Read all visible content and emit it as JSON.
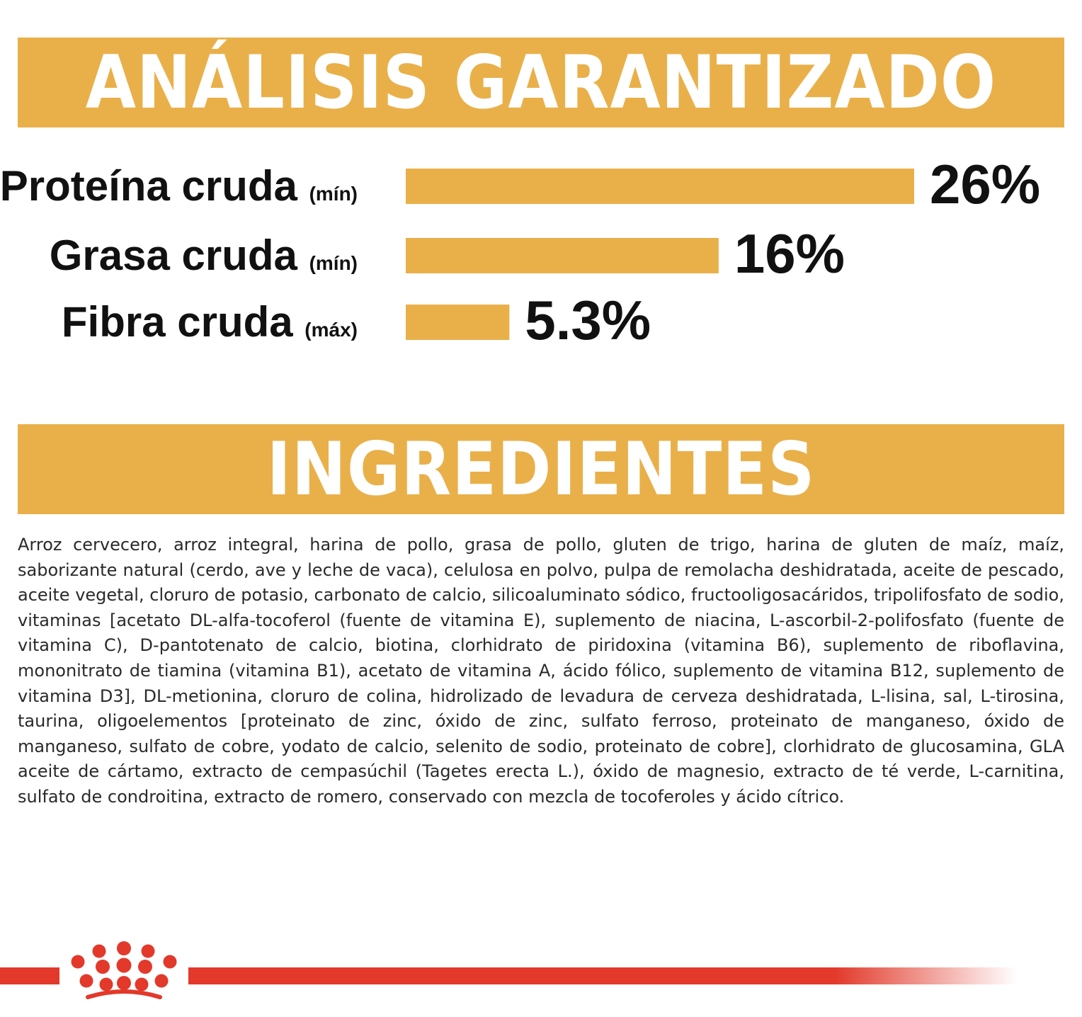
{
  "colors": {
    "accent": "#e9b04a",
    "brand_red": "#e2392b",
    "text": "#111111"
  },
  "analysis_title": "ANÁLISIS GARANTIZADO",
  "ingredients_title": "INGREDIENTES",
  "chart_data": {
    "type": "bar",
    "orientation": "horizontal",
    "title": "ANÁLISIS GARANTIZADO",
    "categories": [
      "Proteína cruda",
      "Grasa cruda",
      "Fibra cruda"
    ],
    "qualifiers": [
      "(mín)",
      "(mín)",
      "(máx)"
    ],
    "values": [
      26,
      16,
      5.3
    ],
    "value_labels": [
      "26%",
      "16%",
      "5.3%"
    ],
    "unit": "%",
    "xlim": [
      0,
      26
    ],
    "grid": false,
    "legend": "none"
  },
  "ingredients_text": "Arroz cervecero, arroz integral, harina de pollo, grasa de pollo, gluten de trigo, harina de gluten de maíz, maíz, saborizante natural (cerdo, ave y leche de vaca), celulosa en polvo, pulpa de remolacha deshidratada, aceite de pescado, aceite vegetal, cloruro de potasio, carbonato de calcio, silicoaluminato sódico, fructooligosacáridos, tripolifosfato de sodio, vitaminas [acetato DL-alfa-tocoferol (fuente de vitamina E), suplemento de niacina, L-ascorbil-2-polifosfato (fuente de vitamina C), D-pantotenato de calcio, biotina, clorhidrato de piridoxina (vitamina B6), suplemento de riboflavina, mononitrato de tiamina (vitamina B1), acetato de vitamina A, ácido fólico, suplemento de vitamina B12, suplemento de vitamina D3], DL-metionina, cloruro de colina, hidrolizado de levadura de cerveza deshidratada, L-lisina, sal, L-tirosina, taurina, oligoelementos [proteinato de zinc, óxido de zinc, sulfato ferroso, proteinato de manganeso, óxido de manganeso, sulfato de cobre, yodato de calcio, selenito de sodio, proteinato de cobre], clorhidrato de glucosamina, GLA aceite de cártamo, extracto de cempasúchil (Tagetes erecta L.), óxido de magnesio, extracto de té verde, L-carnitina, sulfato de condroitina, extracto de romero, conservado con mezcla de tocoferoles y ácido cítrico.",
  "footer": {
    "logo_icon": "crown-icon"
  }
}
